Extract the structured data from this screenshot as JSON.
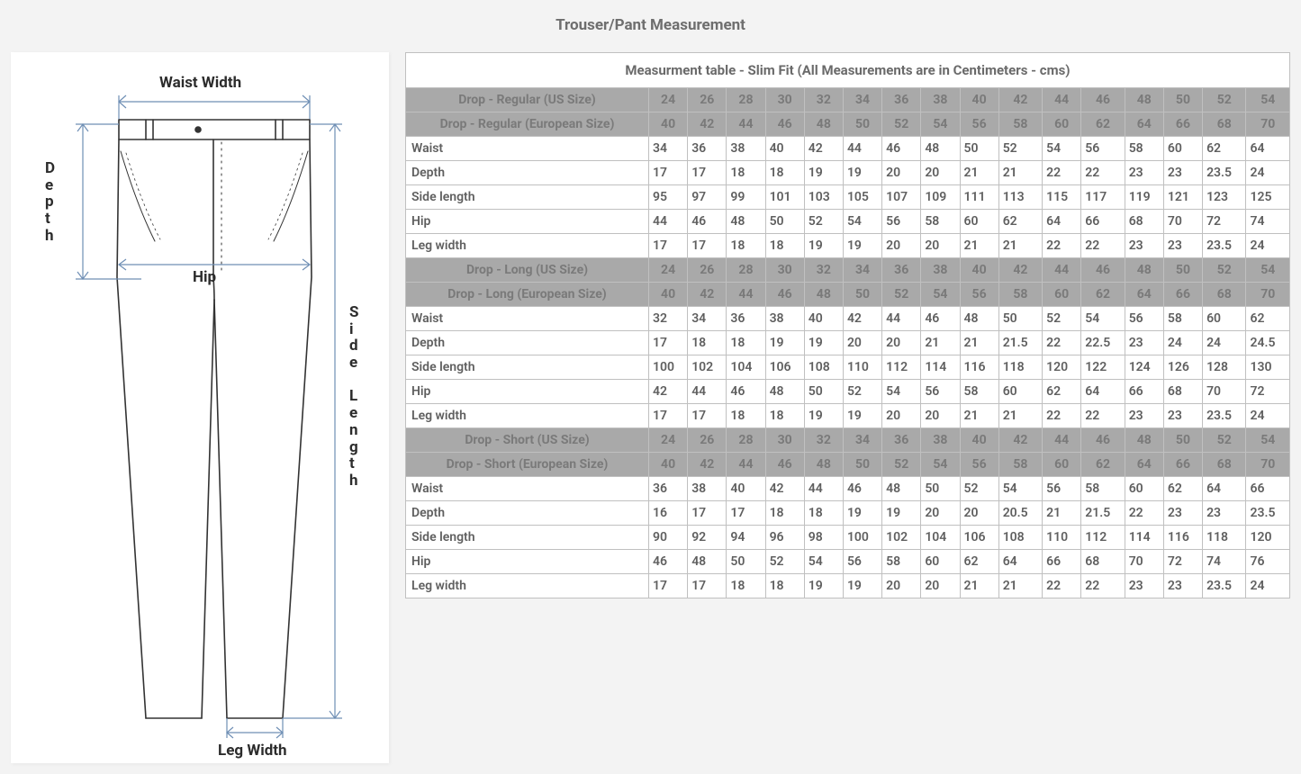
{
  "title": "Trouser/Pant Measurement",
  "diagram": {
    "labels": {
      "waist_width": "Waist Width",
      "depth": "Depth",
      "hip": "Hip",
      "side_length": "Side Length",
      "leg_width": "Leg Width"
    },
    "arrow_color": "#6f8fb5",
    "line_color": "#333333"
  },
  "table": {
    "caption": "Measurment table - Slim Fit (All Measurements are in Centimeters - cms)",
    "us_label_prefix": "Drop - ",
    "us_label_suffix": " (US Size)",
    "eu_label_suffix": " (European Size)",
    "us_sizes": [
      24,
      26,
      28,
      30,
      32,
      34,
      36,
      38,
      40,
      42,
      44,
      46,
      48,
      50,
      52,
      54
    ],
    "eu_sizes": [
      40,
      42,
      44,
      46,
      48,
      50,
      52,
      54,
      56,
      58,
      60,
      62,
      64,
      66,
      68,
      70
    ],
    "sections": [
      {
        "name": "Regular",
        "rows": [
          {
            "label": "Waist",
            "values": [
              34,
              36,
              38,
              40,
              42,
              44,
              46,
              48,
              50,
              52,
              54,
              56,
              58,
              60,
              62,
              64
            ]
          },
          {
            "label": "Depth",
            "values": [
              17,
              17,
              18,
              18,
              19,
              19,
              20,
              20,
              21,
              21,
              22,
              22,
              23,
              23,
              23.5,
              24
            ]
          },
          {
            "label": "Side length",
            "values": [
              95,
              97,
              99,
              101,
              103,
              105,
              107,
              109,
              111,
              113,
              115,
              117,
              119,
              121,
              123,
              125
            ]
          },
          {
            "label": "Hip",
            "values": [
              44,
              46,
              48,
              50,
              52,
              54,
              56,
              58,
              60,
              62,
              64,
              66,
              68,
              70,
              72,
              74
            ]
          },
          {
            "label": "Leg width",
            "values": [
              17,
              17,
              18,
              18,
              19,
              19,
              20,
              20,
              21,
              21,
              22,
              22,
              23,
              23,
              23.5,
              24
            ]
          }
        ]
      },
      {
        "name": "Long",
        "rows": [
          {
            "label": "Waist",
            "values": [
              32,
              34,
              36,
              38,
              40,
              42,
              44,
              46,
              48,
              50,
              52,
              54,
              56,
              58,
              60,
              62
            ]
          },
          {
            "label": "Depth",
            "values": [
              17,
              18,
              18,
              19,
              19,
              20,
              20,
              21,
              21,
              21.5,
              22,
              22.5,
              23,
              24,
              24,
              24.5
            ]
          },
          {
            "label": "Side length",
            "values": [
              100,
              102,
              104,
              106,
              108,
              110,
              112,
              114,
              116,
              118,
              120,
              122,
              124,
              126,
              128,
              130
            ]
          },
          {
            "label": "Hip",
            "values": [
              42,
              44,
              46,
              48,
              50,
              52,
              54,
              56,
              58,
              60,
              62,
              64,
              66,
              68,
              70,
              72
            ]
          },
          {
            "label": "Leg width",
            "values": [
              17,
              17,
              18,
              18,
              19,
              19,
              20,
              20,
              21,
              21,
              22,
              22,
              23,
              23,
              23.5,
              24
            ]
          }
        ]
      },
      {
        "name": "Short",
        "rows": [
          {
            "label": "Waist",
            "values": [
              36,
              38,
              40,
              42,
              44,
              46,
              48,
              50,
              52,
              54,
              56,
              58,
              60,
              62,
              64,
              66
            ]
          },
          {
            "label": "Depth",
            "values": [
              16,
              17,
              17,
              18,
              18,
              19,
              19,
              20,
              20,
              20.5,
              21,
              21.5,
              22,
              23,
              23,
              23.5
            ]
          },
          {
            "label": "Side length",
            "values": [
              90,
              92,
              94,
              96,
              98,
              100,
              102,
              104,
              106,
              108,
              110,
              112,
              114,
              116,
              118,
              120
            ]
          },
          {
            "label": "Hip",
            "values": [
              46,
              48,
              50,
              52,
              54,
              56,
              58,
              60,
              62,
              64,
              66,
              68,
              70,
              72,
              74,
              76
            ]
          },
          {
            "label": "Leg width",
            "values": [
              17,
              17,
              18,
              18,
              19,
              19,
              20,
              20,
              21,
              21,
              22,
              22,
              23,
              23,
              23.5,
              24
            ]
          }
        ]
      }
    ]
  },
  "style": {
    "header_bg": "#a9a9a9",
    "header_text": "#7a7a7a",
    "cell_text": "#5f5f5f",
    "border": "#c0c0c0",
    "body_bg": "#f3f3f3"
  }
}
